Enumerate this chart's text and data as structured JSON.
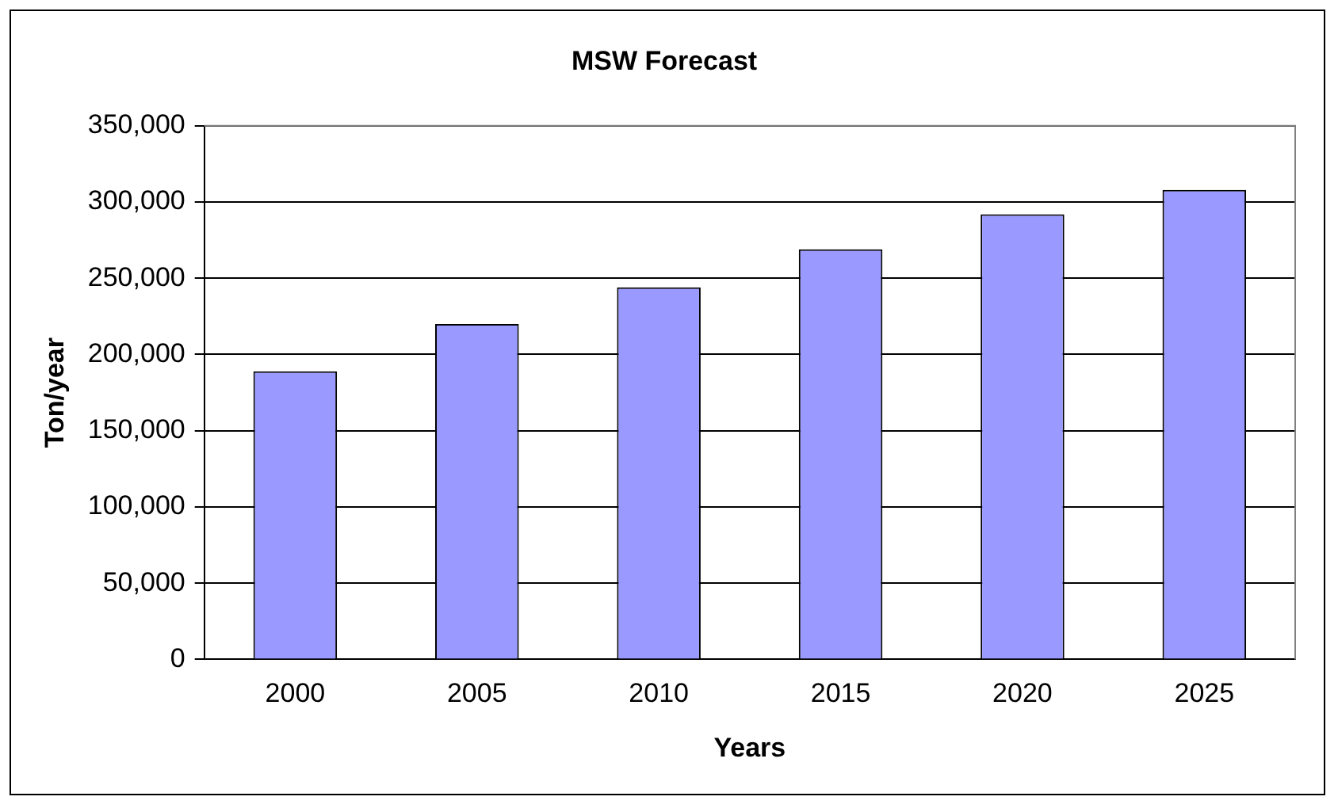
{
  "chart_data": {
    "type": "bar",
    "title": "MSW Forecast",
    "xlabel": "Years",
    "ylabel": "Ton/year",
    "categories": [
      "2000",
      "2005",
      "2010",
      "2015",
      "2020",
      "2025"
    ],
    "values": [
      189000,
      220000,
      244000,
      269000,
      292000,
      308000
    ],
    "color": "#9999ff",
    "ylim": [
      0,
      350000
    ],
    "yticks": [
      0,
      {
        "value": 50000,
        "label": "50,000"
      },
      {
        "value": 100000,
        "label": "100,000"
      },
      {
        "value": 150000,
        "label": "150,000"
      },
      {
        "value": 200000,
        "label": "200,000"
      },
      {
        "value": 250000,
        "label": "250,000"
      },
      {
        "value": 300000,
        "label": "300,000"
      },
      {
        "value": 350000,
        "label": "350,000"
      }
    ],
    "grid": "y",
    "legend": false
  }
}
